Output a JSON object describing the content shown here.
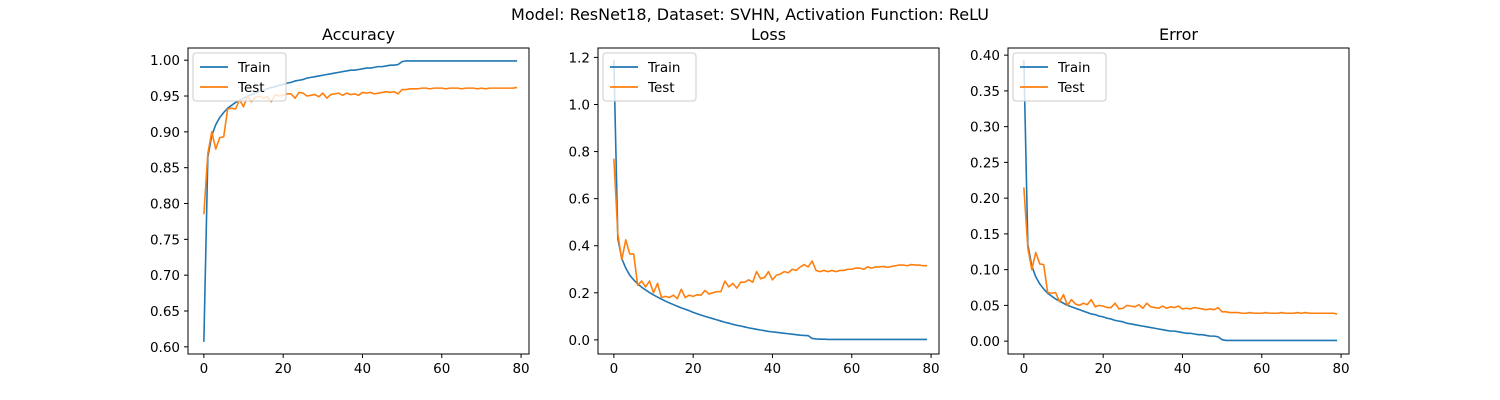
{
  "suptitle": "Model: ResNet18, Dataset: SVHN, Activation Function: ReLU",
  "colors": {
    "train": "#1f77b4",
    "test": "#ff7f0e"
  },
  "chart_data": [
    {
      "type": "line",
      "title": "Accuracy",
      "xlabel": "",
      "ylabel": "",
      "xlim": [
        -4,
        82
      ],
      "ylim": [
        0.59,
        1.017
      ],
      "xticks": [
        0,
        20,
        40,
        60,
        80
      ],
      "yticks": [
        0.6,
        0.65,
        0.7,
        0.75,
        0.8,
        0.85,
        0.9,
        0.95,
        1.0
      ],
      "ytick_labels": [
        "0.60",
        "0.65",
        "0.70",
        "0.75",
        "0.80",
        "0.85",
        "0.90",
        "0.95",
        "1.00"
      ],
      "legend": "upper left",
      "x": [
        0,
        1,
        2,
        3,
        4,
        5,
        6,
        7,
        8,
        9,
        10,
        11,
        12,
        13,
        14,
        15,
        16,
        17,
        18,
        19,
        20,
        21,
        22,
        23,
        24,
        25,
        26,
        27,
        28,
        29,
        30,
        31,
        32,
        33,
        34,
        35,
        36,
        37,
        38,
        39,
        40,
        41,
        42,
        43,
        44,
        45,
        46,
        47,
        48,
        49,
        50,
        51,
        52,
        53,
        54,
        55,
        56,
        57,
        58,
        59,
        60,
        61,
        62,
        63,
        64,
        65,
        66,
        67,
        68,
        69,
        70,
        71,
        72,
        73,
        74,
        75,
        76,
        77,
        78,
        79
      ],
      "series": [
        {
          "name": "Train",
          "color": "#1f77b4",
          "values": [
            0.607,
            0.865,
            0.895,
            0.91,
            0.92,
            0.927,
            0.933,
            0.937,
            0.941,
            0.944,
            0.947,
            0.95,
            0.952,
            0.954,
            0.956,
            0.958,
            0.96,
            0.962,
            0.963,
            0.965,
            0.966,
            0.968,
            0.969,
            0.971,
            0.972,
            0.973,
            0.975,
            0.976,
            0.977,
            0.978,
            0.979,
            0.98,
            0.981,
            0.982,
            0.983,
            0.984,
            0.985,
            0.986,
            0.986,
            0.987,
            0.988,
            0.989,
            0.989,
            0.99,
            0.991,
            0.991,
            0.992,
            0.993,
            0.993,
            0.994,
            0.998,
            0.999,
            0.999,
            0.999,
            0.999,
            0.999,
            0.999,
            0.999,
            0.999,
            0.999,
            0.999,
            0.999,
            0.999,
            0.999,
            0.999,
            0.999,
            0.999,
            0.999,
            0.999,
            0.999,
            0.999,
            0.999,
            0.999,
            0.999,
            0.999,
            0.999,
            0.999,
            0.999,
            0.999,
            0.999
          ]
        },
        {
          "name": "Test",
          "color": "#ff7f0e",
          "values": [
            0.785,
            0.87,
            0.9,
            0.876,
            0.892,
            0.893,
            0.932,
            0.933,
            0.932,
            0.945,
            0.935,
            0.95,
            0.942,
            0.948,
            0.95,
            0.947,
            0.949,
            0.942,
            0.952,
            0.95,
            0.951,
            0.953,
            0.953,
            0.947,
            0.955,
            0.954,
            0.95,
            0.951,
            0.952,
            0.949,
            0.954,
            0.947,
            0.952,
            0.953,
            0.954,
            0.951,
            0.954,
            0.952,
            0.953,
            0.951,
            0.955,
            0.954,
            0.955,
            0.953,
            0.954,
            0.955,
            0.956,
            0.955,
            0.956,
            0.953,
            0.959,
            0.959,
            0.96,
            0.96,
            0.96,
            0.961,
            0.961,
            0.96,
            0.961,
            0.961,
            0.961,
            0.96,
            0.961,
            0.961,
            0.961,
            0.96,
            0.961,
            0.961,
            0.961,
            0.96,
            0.961,
            0.96,
            0.961,
            0.961,
            0.961,
            0.961,
            0.961,
            0.961,
            0.961,
            0.962
          ]
        }
      ]
    },
    {
      "type": "line",
      "title": "Loss",
      "xlabel": "",
      "ylabel": "",
      "xlim": [
        -4,
        82
      ],
      "ylim": [
        -0.06,
        1.24
      ],
      "xticks": [
        0,
        20,
        40,
        60,
        80
      ],
      "yticks": [
        0.0,
        0.2,
        0.4,
        0.6,
        0.8,
        1.0,
        1.2
      ],
      "ytick_labels": [
        "0.0",
        "0.2",
        "0.4",
        "0.6",
        "0.8",
        "1.0",
        "1.2"
      ],
      "legend": "upper left",
      "x": [
        0,
        1,
        2,
        3,
        4,
        5,
        6,
        7,
        8,
        9,
        10,
        11,
        12,
        13,
        14,
        15,
        16,
        17,
        18,
        19,
        20,
        21,
        22,
        23,
        24,
        25,
        26,
        27,
        28,
        29,
        30,
        31,
        32,
        33,
        34,
        35,
        36,
        37,
        38,
        39,
        40,
        41,
        42,
        43,
        44,
        45,
        46,
        47,
        48,
        49,
        50,
        51,
        52,
        53,
        54,
        55,
        56,
        57,
        58,
        59,
        60,
        61,
        62,
        63,
        64,
        65,
        66,
        67,
        68,
        69,
        70,
        71,
        72,
        73,
        74,
        75,
        76,
        77,
        78,
        79
      ],
      "series": [
        {
          "name": "Train",
          "color": "#1f77b4",
          "values": [
            1.19,
            0.43,
            0.345,
            0.305,
            0.275,
            0.255,
            0.238,
            0.224,
            0.212,
            0.201,
            0.191,
            0.182,
            0.173,
            0.165,
            0.157,
            0.15,
            0.143,
            0.136,
            0.13,
            0.124,
            0.117,
            0.111,
            0.105,
            0.1,
            0.095,
            0.09,
            0.085,
            0.08,
            0.075,
            0.071,
            0.066,
            0.062,
            0.059,
            0.055,
            0.051,
            0.048,
            0.045,
            0.042,
            0.039,
            0.036,
            0.034,
            0.032,
            0.03,
            0.028,
            0.026,
            0.024,
            0.022,
            0.02,
            0.019,
            0.018,
            0.006,
            0.004,
            0.003,
            0.003,
            0.002,
            0.002,
            0.002,
            0.002,
            0.002,
            0.002,
            0.002,
            0.002,
            0.002,
            0.002,
            0.002,
            0.002,
            0.002,
            0.002,
            0.002,
            0.002,
            0.002,
            0.002,
            0.002,
            0.002,
            0.002,
            0.002,
            0.002,
            0.002,
            0.002,
            0.002
          ]
        },
        {
          "name": "Test",
          "color": "#ff7f0e",
          "values": [
            0.77,
            0.45,
            0.34,
            0.425,
            0.365,
            0.365,
            0.232,
            0.25,
            0.225,
            0.25,
            0.2,
            0.24,
            0.18,
            0.185,
            0.18,
            0.19,
            0.175,
            0.215,
            0.18,
            0.19,
            0.185,
            0.192,
            0.19,
            0.21,
            0.195,
            0.2,
            0.205,
            0.205,
            0.25,
            0.225,
            0.24,
            0.22,
            0.245,
            0.245,
            0.255,
            0.245,
            0.29,
            0.26,
            0.265,
            0.29,
            0.255,
            0.275,
            0.28,
            0.29,
            0.285,
            0.3,
            0.295,
            0.31,
            0.32,
            0.31,
            0.335,
            0.295,
            0.29,
            0.295,
            0.29,
            0.295,
            0.29,
            0.295,
            0.295,
            0.3,
            0.3,
            0.305,
            0.305,
            0.3,
            0.31,
            0.305,
            0.31,
            0.31,
            0.312,
            0.308,
            0.312,
            0.315,
            0.318,
            0.318,
            0.315,
            0.32,
            0.318,
            0.318,
            0.315,
            0.315
          ]
        }
      ]
    },
    {
      "type": "line",
      "title": "Error",
      "xlabel": "",
      "ylabel": "",
      "xlim": [
        -4,
        82
      ],
      "ylim": [
        -0.018,
        0.41
      ],
      "xticks": [
        0,
        20,
        40,
        60,
        80
      ],
      "yticks": [
        0.0,
        0.05,
        0.1,
        0.15,
        0.2,
        0.25,
        0.3,
        0.35,
        0.4
      ],
      "ytick_labels": [
        "0.00",
        "0.05",
        "0.10",
        "0.15",
        "0.20",
        "0.25",
        "0.30",
        "0.35",
        "0.40"
      ],
      "legend": "upper left",
      "x": [
        0,
        1,
        2,
        3,
        4,
        5,
        6,
        7,
        8,
        9,
        10,
        11,
        12,
        13,
        14,
        15,
        16,
        17,
        18,
        19,
        20,
        21,
        22,
        23,
        24,
        25,
        26,
        27,
        28,
        29,
        30,
        31,
        32,
        33,
        34,
        35,
        36,
        37,
        38,
        39,
        40,
        41,
        42,
        43,
        44,
        45,
        46,
        47,
        48,
        49,
        50,
        51,
        52,
        53,
        54,
        55,
        56,
        57,
        58,
        59,
        60,
        61,
        62,
        63,
        64,
        65,
        66,
        67,
        68,
        69,
        70,
        71,
        72,
        73,
        74,
        75,
        76,
        77,
        78,
        79
      ],
      "series": [
        {
          "name": "Train",
          "color": "#1f77b4",
          "values": [
            0.393,
            0.135,
            0.105,
            0.09,
            0.08,
            0.073,
            0.067,
            0.063,
            0.059,
            0.056,
            0.053,
            0.05,
            0.048,
            0.046,
            0.044,
            0.042,
            0.04,
            0.038,
            0.037,
            0.035,
            0.034,
            0.032,
            0.031,
            0.029,
            0.028,
            0.027,
            0.025,
            0.024,
            0.023,
            0.022,
            0.021,
            0.02,
            0.019,
            0.018,
            0.017,
            0.016,
            0.015,
            0.014,
            0.014,
            0.013,
            0.012,
            0.011,
            0.011,
            0.01,
            0.009,
            0.009,
            0.008,
            0.007,
            0.007,
            0.006,
            0.002,
            0.001,
            0.001,
            0.001,
            0.001,
            0.001,
            0.001,
            0.001,
            0.001,
            0.001,
            0.001,
            0.001,
            0.001,
            0.001,
            0.001,
            0.001,
            0.001,
            0.001,
            0.001,
            0.001,
            0.001,
            0.001,
            0.001,
            0.001,
            0.001,
            0.001,
            0.001,
            0.001,
            0.001,
            0.001
          ]
        },
        {
          "name": "Test",
          "color": "#ff7f0e",
          "values": [
            0.215,
            0.13,
            0.1,
            0.124,
            0.108,
            0.107,
            0.068,
            0.067,
            0.068,
            0.055,
            0.065,
            0.05,
            0.058,
            0.052,
            0.05,
            0.053,
            0.051,
            0.058,
            0.048,
            0.05,
            0.049,
            0.047,
            0.047,
            0.053,
            0.045,
            0.046,
            0.05,
            0.049,
            0.048,
            0.051,
            0.046,
            0.053,
            0.048,
            0.047,
            0.046,
            0.049,
            0.046,
            0.048,
            0.047,
            0.049,
            0.045,
            0.046,
            0.045,
            0.047,
            0.046,
            0.045,
            0.044,
            0.045,
            0.044,
            0.047,
            0.041,
            0.041,
            0.04,
            0.04,
            0.04,
            0.039,
            0.039,
            0.04,
            0.039,
            0.039,
            0.039,
            0.04,
            0.039,
            0.039,
            0.039,
            0.04,
            0.039,
            0.039,
            0.039,
            0.04,
            0.039,
            0.04,
            0.039,
            0.039,
            0.039,
            0.039,
            0.039,
            0.039,
            0.039,
            0.038
          ]
        }
      ]
    }
  ]
}
